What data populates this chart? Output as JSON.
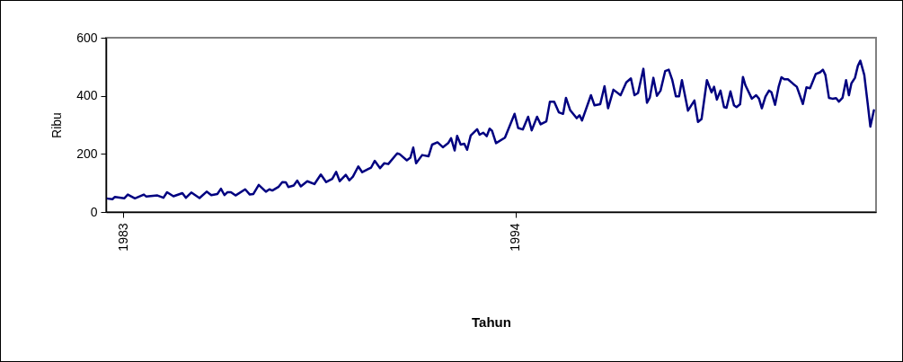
{
  "chart_data": {
    "type": "line",
    "xlabel": "Tahun",
    "ylabel": "Ribu",
    "x": [
      1982.57,
      1982.7,
      1982.77,
      1983.03,
      1983.13,
      1983.33,
      1983.58,
      1983.65,
      1983.96,
      1984.13,
      1984.23,
      1984.41,
      1984.66,
      1984.76,
      1984.91,
      1985.14,
      1985.34,
      1985.47,
      1985.64,
      1985.74,
      1985.84,
      1985.92,
      1986.02,
      1986.15,
      1986.42,
      1986.55,
      1986.65,
      1986.8,
      1987.0,
      1987.1,
      1987.18,
      1987.35,
      1987.46,
      1987.56,
      1987.63,
      1987.78,
      1987.88,
      1987.98,
      1988.16,
      1988.36,
      1988.54,
      1988.69,
      1988.86,
      1988.97,
      1989.07,
      1989.24,
      1989.34,
      1989.44,
      1989.59,
      1989.7,
      1989.87,
      1989.95,
      1990.05,
      1990.2,
      1990.32,
      1990.43,
      1990.68,
      1990.75,
      1990.95,
      1991.05,
      1991.13,
      1991.21,
      1991.38,
      1991.56,
      1991.66,
      1991.81,
      1991.96,
      1992.11,
      1992.19,
      1992.29,
      1992.36,
      1992.46,
      1992.56,
      1992.64,
      1992.74,
      1992.92,
      1992.99,
      1993.09,
      1993.19,
      1993.27,
      1993.34,
      1993.45,
      1993.7,
      1993.97,
      1994.07,
      1994.2,
      1994.35,
      1994.45,
      1994.6,
      1994.7,
      1994.86,
      1994.96,
      1995.08,
      1995.21,
      1995.33,
      1995.41,
      1995.53,
      1995.71,
      1995.79,
      1995.86,
      1996.11,
      1996.21,
      1996.37,
      1996.49,
      1996.59,
      1996.74,
      1996.94,
      1997.1,
      1997.23,
      1997.33,
      1997.43,
      1997.58,
      1997.68,
      1997.76,
      1997.86,
      1997.96,
      1998.06,
      1998.19,
      1998.29,
      1998.39,
      1998.49,
      1998.58,
      1998.66,
      1998.83,
      1999.01,
      1999.11,
      1999.21,
      1999.36,
      1999.49,
      1999.56,
      1999.64,
      1999.74,
      1999.84,
      1999.91,
      2000.02,
      2000.12,
      2000.19,
      2000.29,
      2000.37,
      2000.44,
      2000.62,
      2000.74,
      2000.82,
      2000.9,
      2001.0,
      2001.1,
      2001.17,
      2001.27,
      2001.37,
      2001.45,
      2001.53,
      2001.63,
      2001.78,
      2001.88,
      2002.05,
      2002.15,
      2002.25,
      2002.41,
      2002.53,
      2002.61,
      2002.68,
      2002.78,
      2002.88,
      2002.98,
      2003.06,
      2003.16,
      2003.26,
      2003.34,
      2003.41,
      2003.51,
      2003.59,
      2003.66,
      2003.77,
      2003.87,
      2003.94,
      2004.04
    ],
    "series": [
      {
        "color": "#000080",
        "values": [
          46,
          44,
          52,
          47,
          60,
          47,
          60,
          53,
          57,
          49,
          68,
          54,
          65,
          49,
          67,
          48,
          70,
          58,
          62,
          80,
          58,
          68,
          68,
          57,
          78,
          60,
          62,
          93,
          70,
          78,
          74,
          86,
          103,
          102,
          86,
          91,
          108,
          88,
          106,
          96,
          129,
          103,
          114,
          138,
          106,
          128,
          109,
          122,
          157,
          137,
          148,
          153,
          176,
          151,
          168,
          165,
          202,
          199,
          178,
          187,
          222,
          168,
          196,
          192,
          232,
          240,
          223,
          237,
          254,
          212,
          262,
          232,
          235,
          214,
          263,
          285,
          266,
          273,
          261,
          287,
          279,
          237,
          256,
          338,
          289,
          284,
          328,
          281,
          328,
          302,
          312,
          380,
          380,
          343,
          338,
          393,
          350,
          323,
          333,
          315,
          402,
          367,
          371,
          433,
          357,
          421,
          402,
          446,
          460,
          402,
          410,
          493,
          376,
          394,
          462,
          400,
          418,
          485,
          490,
          454,
          398,
          398,
          454,
          349,
          384,
          310,
          320,
          454,
          412,
          431,
          387,
          418,
          361,
          359,
          415,
          367,
          361,
          371,
          465,
          436,
          390,
          402,
          390,
          357,
          397,
          418,
          412,
          369,
          431,
          464,
          457,
          457,
          441,
          431,
          372,
          429,
          426,
          475,
          481,
          490,
          472,
          393,
          390,
          392,
          380,
          393,
          454,
          402,
          443,
          462,
          503,
          521,
          472,
          369,
          294,
          350
        ]
      }
    ],
    "xlim": [
      1982.52,
      2004.1
    ],
    "xticks": [
      1983,
      1994
    ],
    "ylim": [
      0,
      600
    ],
    "yticks": [
      0,
      200,
      400,
      600
    ]
  }
}
